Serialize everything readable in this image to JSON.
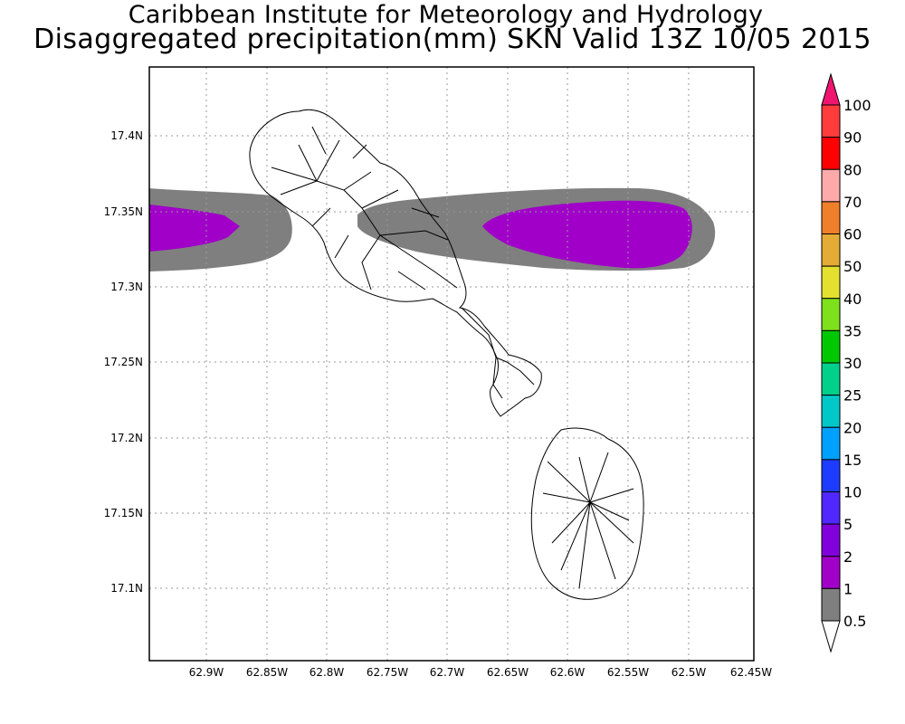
{
  "header": {
    "title": "Caribbean Institute for Meteorology and Hydrology",
    "subtitle": "Disaggregated precipitation(mm) SKN Valid 13Z 10/05 2015"
  },
  "map": {
    "lon_ticks": [
      "62.9W",
      "62.85W",
      "62.8W",
      "62.75W",
      "62.7W",
      "62.65W",
      "62.6W",
      "62.55W",
      "62.5W",
      "62.45W"
    ],
    "lat_ticks": [
      "17.4N",
      "17.35N",
      "17.3N",
      "17.25N",
      "17.2N",
      "17.15N",
      "17.1N"
    ],
    "lon_range": [
      -62.95,
      -62.45
    ],
    "lat_range": [
      17.05,
      17.45
    ],
    "islands": [
      "St. Kitts",
      "Nevis"
    ],
    "precip_fields": [
      {
        "band": "0.5-1",
        "color": "#7f7f7f"
      },
      {
        "band": "1-2",
        "color": "#a000c8"
      }
    ]
  },
  "colorbar": {
    "levels": [
      {
        "label": "100",
        "color": "#ef1470"
      },
      {
        "label": "90",
        "color": "#ff3b3b"
      },
      {
        "label": "80",
        "color": "#ff0000"
      },
      {
        "label": "70",
        "color": "#ffaaaa"
      },
      {
        "label": "60",
        "color": "#f07f2a"
      },
      {
        "label": "50",
        "color": "#e4ac36"
      },
      {
        "label": "40",
        "color": "#e4e030"
      },
      {
        "label": "35",
        "color": "#7fe11c"
      },
      {
        "label": "30",
        "color": "#00c800"
      },
      {
        "label": "25",
        "color": "#00d08a"
      },
      {
        "label": "20",
        "color": "#00c8c8"
      },
      {
        "label": "15",
        "color": "#00a0ff"
      },
      {
        "label": "10",
        "color": "#1e3cff"
      },
      {
        "label": "5",
        "color": "#5028ff"
      },
      {
        "label": "2",
        "color": "#8200dc"
      },
      {
        "label": "1",
        "color": "#a000c8"
      },
      {
        "label": "0.5",
        "color": "#7f7f7f"
      }
    ]
  }
}
